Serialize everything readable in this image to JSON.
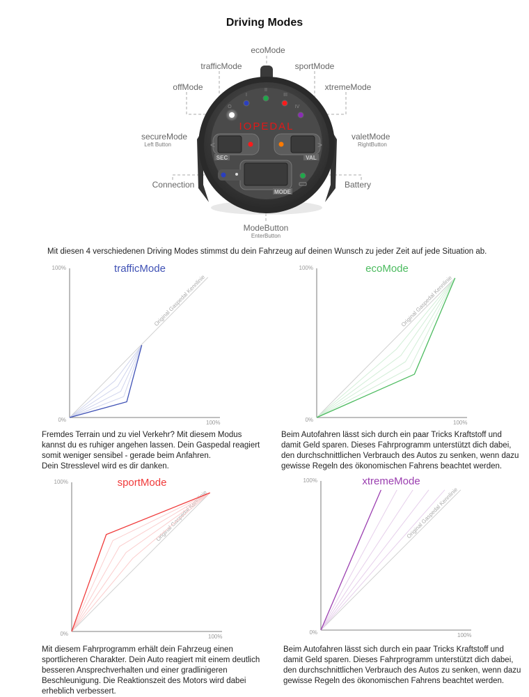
{
  "title": "Driving Modes",
  "device": {
    "brand": "IOPEDAL",
    "labels": {
      "eco": "ecoMode",
      "traffic": "trafficMode",
      "sport": "sportMode",
      "off": "offMode",
      "xtreme": "xtremeMode",
      "secure": "secureMode",
      "secure_sub": "Left Button",
      "valet": "valetMode",
      "valet_sub": "RightButton",
      "connection": "Connection",
      "battery": "Battery",
      "mode_button": "ModeButton",
      "mode_button_sub": "EnterButton"
    },
    "button_labels": {
      "sec": "SEC",
      "val": "VAL",
      "mode": "MODE"
    },
    "led_marks": {
      "off": "O",
      "traffic": "I",
      "eco": "II",
      "sport": "III",
      "xtreme": "IV"
    },
    "led_colors": {
      "off": "#ffffff",
      "traffic": "#2b3fbf",
      "eco": "#1fa84a",
      "sport": "#ff1a1a",
      "xtreme": "#8a2bb5",
      "secure": "#ff1a1a",
      "valet": "#ff7a00",
      "connection": "#2b3fbf",
      "battery": "#1fa84a"
    }
  },
  "intro": "Mit diesen 4 verschiedenen Driving Modes stimmst du dein Fahrzeug auf deinen Wunsch zu jeder Zeit auf jede Situation ab.",
  "chart_data": [
    {
      "type": "line",
      "title": "trafficMode",
      "color": "#3f51b5",
      "x_ticks": [
        "0%",
        "100%"
      ],
      "y_ticks": [
        "0%",
        "100%"
      ],
      "xlim": [
        0,
        100
      ],
      "ylim": [
        0,
        100
      ],
      "reference_label": "Original Gaspedal Kennlinie",
      "reference": [
        [
          0,
          0
        ],
        [
          92,
          94
        ]
      ],
      "curve": [
        [
          0,
          0
        ],
        [
          38,
          10.5
        ],
        [
          48,
          48.5
        ]
      ]
    },
    {
      "type": "line",
      "title": "ecoMode",
      "color": "#4cbb5f",
      "x_ticks": [
        "0%",
        "100%"
      ],
      "y_ticks": [
        "0%",
        "100%"
      ],
      "xlim": [
        0,
        100
      ],
      "ylim": [
        0,
        100
      ],
      "reference_label": "Original Gaspedal Kennlinie",
      "reference": [
        [
          0,
          0
        ],
        [
          92,
          93.5
        ]
      ],
      "curve": [
        [
          0,
          0
        ],
        [
          65,
          29
        ],
        [
          92,
          93.5
        ]
      ]
    },
    {
      "type": "line",
      "title": "sportMode",
      "color": "#f03a3a",
      "x_ticks": [
        "0%",
        "100%"
      ],
      "y_ticks": [
        "0%",
        "100%"
      ],
      "xlim": [
        0,
        100
      ],
      "ylim": [
        0,
        100
      ],
      "reference_label": "Original Gaspedal Kennlinie",
      "reference": [
        [
          0,
          0
        ],
        [
          92,
          93
        ]
      ],
      "curve": [
        [
          0,
          0
        ],
        [
          23,
          65
        ],
        [
          92,
          93
        ]
      ]
    },
    {
      "type": "line",
      "title": "xtremeMode",
      "color": "#9b3fb0",
      "x_ticks": [
        "0%",
        "100%"
      ],
      "y_ticks": [
        "0%",
        "100%"
      ],
      "xlim": [
        0,
        100
      ],
      "ylim": [
        0,
        100
      ],
      "reference_label": "Original Gaspedal Kennlinie",
      "reference": [
        [
          0,
          0
        ],
        [
          93,
          94
        ]
      ],
      "curve": [
        [
          0,
          0
        ],
        [
          40,
          94
        ]
      ]
    }
  ],
  "descriptions": [
    [
      "Fremdes Terrain und zu viel Verkehr? Mit diesem Modus",
      "kannst du es ruhiger angehen lassen. Dein Gaspedal reagiert",
      "somit weniger sensibel - gerade beim Anfahren.",
      "Dein Stresslevel wird es dir danken."
    ],
    [
      "Beim Autofahren lässt sich durch ein paar Tricks Kraftstoff und",
      "damit Geld sparen. Dieses Fahrprogramm unterstützt dich dabei,",
      "den durchschnittlichen Verbrauch des Autos zu senken,  wenn dazu",
      "gewisse Regeln des ökonomischen Fahrens beachtet werden."
    ],
    [
      "Mit diesem Fahrprogramm erhält dein Fahrzeug einen",
      "sportlicheren Charakter. Dein Auto reagiert mit einem deutlich",
      "besseren Ansprechverhalten und einer gradlinigeren",
      "Beschleunigung. Die Reaktionszeit des Motors wird dabei",
      "erheblich verbessert."
    ],
    [
      "Beim Autofahren lässt sich durch ein paar Tricks Kraftstoff und",
      "damit Geld sparen. Dieses Fahrprogramm unterstützt dich dabei,",
      "den durchschnittlichen Verbrauch des Autos zu senken,  wenn dazu",
      "gewisse Regeln des ökonomischen Fahrens beachtet werden."
    ]
  ]
}
